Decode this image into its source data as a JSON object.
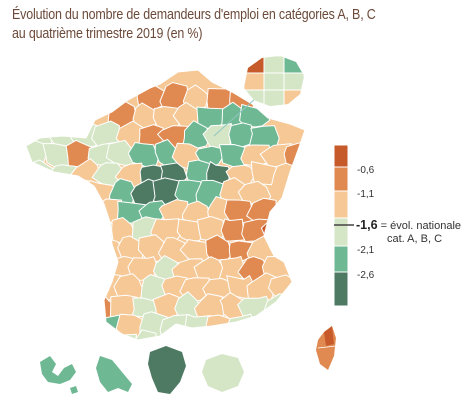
{
  "title": {
    "line1": "Évolution du nombre de demandeurs d'emploi en catégories A, B, C",
    "line2": "au quatrième trimestre 2019 (en %)"
  },
  "legend": {
    "classes": [
      {
        "color": "#c65a2a"
      },
      {
        "color": "#e08a52"
      },
      {
        "color": "#f6c896"
      },
      {
        "color": "#d5e6c6"
      },
      {
        "color": "#6fb894"
      },
      {
        "color": "#4e7a64"
      }
    ],
    "thresholds": [
      "-0,6",
      "-1,1",
      "-2,1",
      "-2,6"
    ],
    "national_value": "-1,6",
    "national_label_line1": "= évol. nationale",
    "national_label_line2": "cat. A, B, C"
  },
  "colors": {
    "border": "#ffffff",
    "inset_line": "#8fc6c0",
    "title": "#6b4a3a"
  }
}
